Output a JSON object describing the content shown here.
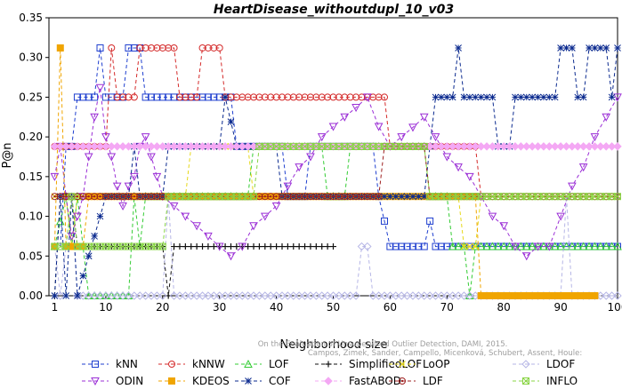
{
  "chart_data": {
    "type": "line",
    "title": "HeartDisease_withoutdupl_10_v03",
    "xlabel": "Neighborhood size",
    "ylabel": "P@n",
    "xlim": [
      0,
      100
    ],
    "ylim": [
      0,
      0.35
    ],
    "x_ticks": [
      1,
      10,
      20,
      30,
      40,
      50,
      60,
      70,
      80,
      90,
      100
    ],
    "y_ticks": [
      "0.00",
      "0.05",
      "0.10",
      "0.15",
      "0.20",
      "0.25",
      "0.30",
      "0.35"
    ],
    "grid": false,
    "legend_position": "bottom",
    "watermark": "Campos, Zimek, Sander, Campello, Micenková, Schubert, Assent, Houle: On the Evaluation of Unsupervised Outlier Detection, DAMI, 2015.",
    "series": [
      {
        "name": "kNN",
        "color": "#1f3fcf",
        "marker": "square",
        "points": [
          [
            1,
            0.062
          ],
          [
            2,
            0.062
          ],
          [
            3,
            0.188
          ],
          [
            4,
            0.188
          ],
          [
            5,
            0.25
          ],
          [
            8,
            0.25
          ],
          [
            9,
            0.312
          ],
          [
            10,
            0.25
          ],
          [
            13,
            0.25
          ],
          [
            14,
            0.312
          ],
          [
            16,
            0.312
          ],
          [
            17,
            0.25
          ],
          [
            32,
            0.25
          ],
          [
            33,
            0.188
          ],
          [
            35,
            0.188
          ],
          [
            36,
            0.188
          ],
          [
            41,
            0.188
          ],
          [
            42,
            0.125
          ],
          [
            45,
            0.125
          ],
          [
            46,
            0.188
          ],
          [
            57,
            0.188
          ],
          [
            58,
            0.125
          ],
          [
            59,
            0.094
          ],
          [
            60,
            0.062
          ],
          [
            66,
            0.062
          ],
          [
            67,
            0.094
          ],
          [
            68,
            0.062
          ],
          [
            100,
            0.062
          ]
        ]
      },
      {
        "name": "kNNW",
        "color": "#d42a2a",
        "marker": "circle",
        "points": [
          [
            1,
            0.188
          ],
          [
            10,
            0.188
          ],
          [
            11,
            0.312
          ],
          [
            12,
            0.25
          ],
          [
            15,
            0.25
          ],
          [
            16,
            0.312
          ],
          [
            22,
            0.312
          ],
          [
            23,
            0.25
          ],
          [
            26,
            0.25
          ],
          [
            27,
            0.312
          ],
          [
            30,
            0.312
          ],
          [
            31,
            0.25
          ],
          [
            59,
            0.25
          ],
          [
            60,
            0.188
          ],
          [
            75,
            0.188
          ],
          [
            76,
            0.125
          ],
          [
            100,
            0.125
          ]
        ]
      },
      {
        "name": "LOF",
        "color": "#33cc33",
        "marker": "triangle",
        "points": [
          [
            1,
            0.062
          ],
          [
            3,
            0.125
          ],
          [
            4,
            0.062
          ],
          [
            5,
            0.125
          ],
          [
            6,
            0.062
          ],
          [
            7,
            0.0
          ],
          [
            14,
            0.0
          ],
          [
            15,
            0.125
          ],
          [
            16,
            0.062
          ],
          [
            17,
            0.125
          ],
          [
            35,
            0.125
          ],
          [
            36,
            0.188
          ],
          [
            48,
            0.188
          ],
          [
            49,
            0.125
          ],
          [
            52,
            0.125
          ],
          [
            53,
            0.188
          ],
          [
            66,
            0.188
          ],
          [
            67,
            0.125
          ],
          [
            70,
            0.125
          ],
          [
            71,
            0.062
          ],
          [
            73,
            0.062
          ],
          [
            74,
            0.0
          ],
          [
            75,
            0.062
          ],
          [
            100,
            0.062
          ]
        ]
      },
      {
        "name": "SimplifiedLOF",
        "color": "#111111",
        "marker": "plus",
        "points": [
          [
            1,
            0.0
          ],
          [
            2,
            0.125
          ],
          [
            4,
            0.125
          ],
          [
            5,
            0.062
          ],
          [
            20,
            0.062
          ],
          [
            21,
            0.0
          ],
          [
            22,
            0.062
          ],
          [
            50,
            0.062
          ]
        ]
      },
      {
        "name": "LoOP",
        "color": "#e6d81a",
        "marker": "x",
        "points": [
          [
            1,
            0.125
          ],
          [
            3,
            0.125
          ],
          [
            4,
            0.062
          ],
          [
            5,
            0.125
          ],
          [
            24,
            0.125
          ],
          [
            25,
            0.188
          ],
          [
            35,
            0.188
          ],
          [
            36,
            0.125
          ],
          [
            72,
            0.125
          ],
          [
            73,
            0.062
          ],
          [
            75,
            0.062
          ],
          [
            76,
            0.125
          ],
          [
            100,
            0.125
          ]
        ]
      },
      {
        "name": "LDOF",
        "color": "#b6b6e6",
        "marker": "diamond",
        "points": [
          [
            1,
            0.062
          ],
          [
            2,
            0.0
          ],
          [
            4,
            0.125
          ],
          [
            5,
            0.0
          ],
          [
            20,
            0.0
          ],
          [
            21,
            0.125
          ],
          [
            22,
            0.0
          ],
          [
            54,
            0.0
          ],
          [
            55,
            0.062
          ],
          [
            56,
            0.062
          ],
          [
            57,
            0.0
          ],
          [
            90,
            0.0
          ],
          [
            91,
            0.125
          ],
          [
            92,
            0.0
          ],
          [
            100,
            0.0
          ]
        ]
      },
      {
        "name": "ODIN",
        "color": "#9b2fd6",
        "marker": "triangle-down",
        "points": [
          [
            1,
            0.15
          ],
          [
            2,
            0.188
          ],
          [
            3,
            0.125
          ],
          [
            4,
            0.075
          ],
          [
            5,
            0.1
          ],
          [
            6,
            0.125
          ],
          [
            7,
            0.175
          ],
          [
            8,
            0.225
          ],
          [
            9,
            0.262
          ],
          [
            10,
            0.2
          ],
          [
            11,
            0.175
          ],
          [
            12,
            0.138
          ],
          [
            13,
            0.113
          ],
          [
            14,
            0.138
          ],
          [
            15,
            0.15
          ],
          [
            16,
            0.188
          ],
          [
            17,
            0.2
          ],
          [
            18,
            0.175
          ],
          [
            19,
            0.15
          ],
          [
            20,
            0.125
          ],
          [
            22,
            0.113
          ],
          [
            24,
            0.1
          ],
          [
            26,
            0.088
          ],
          [
            28,
            0.075
          ],
          [
            30,
            0.062
          ],
          [
            32,
            0.05
          ],
          [
            34,
            0.062
          ],
          [
            36,
            0.088
          ],
          [
            38,
            0.1
          ],
          [
            40,
            0.113
          ],
          [
            42,
            0.138
          ],
          [
            44,
            0.162
          ],
          [
            46,
            0.175
          ],
          [
            48,
            0.2
          ],
          [
            50,
            0.213
          ],
          [
            52,
            0.225
          ],
          [
            54,
            0.237
          ],
          [
            56,
            0.25
          ],
          [
            58,
            0.213
          ],
          [
            60,
            0.188
          ],
          [
            62,
            0.2
          ],
          [
            64,
            0.212
          ],
          [
            66,
            0.225
          ],
          [
            68,
            0.2
          ],
          [
            70,
            0.175
          ],
          [
            72,
            0.162
          ],
          [
            74,
            0.15
          ],
          [
            76,
            0.125
          ],
          [
            78,
            0.1
          ],
          [
            80,
            0.088
          ],
          [
            82,
            0.062
          ],
          [
            84,
            0.05
          ],
          [
            86,
            0.062
          ],
          [
            88,
            0.062
          ],
          [
            90,
            0.1
          ],
          [
            92,
            0.138
          ],
          [
            94,
            0.162
          ],
          [
            96,
            0.2
          ],
          [
            98,
            0.225
          ],
          [
            100,
            0.25
          ]
        ]
      },
      {
        "name": "KDEOS",
        "color": "#f0a500",
        "marker": "square-filled",
        "points": [
          [
            1,
            0.062
          ],
          [
            2,
            0.312
          ],
          [
            3,
            0.062
          ],
          [
            6,
            0.062
          ],
          [
            7,
            0.125
          ],
          [
            75,
            0.125
          ],
          [
            76,
            0.0
          ],
          [
            96,
            0.0
          ]
        ]
      },
      {
        "name": "COF",
        "color": "#0b2a8f",
        "marker": "asterisk",
        "points": [
          [
            1,
            0.0
          ],
          [
            2,
            0.125
          ],
          [
            3,
            0.0
          ],
          [
            4,
            0.125
          ],
          [
            5,
            0.0
          ],
          [
            10,
            0.125
          ],
          [
            14,
            0.125
          ],
          [
            15,
            0.188
          ],
          [
            16,
            0.125
          ],
          [
            20,
            0.125
          ],
          [
            21,
            0.188
          ],
          [
            30,
            0.188
          ],
          [
            31,
            0.25
          ],
          [
            33,
            0.188
          ],
          [
            40,
            0.188
          ],
          [
            41,
            0.125
          ],
          [
            60,
            0.125
          ],
          [
            66,
            0.125
          ],
          [
            67,
            0.188
          ],
          [
            68,
            0.25
          ],
          [
            71,
            0.25
          ],
          [
            72,
            0.312
          ],
          [
            73,
            0.25
          ],
          [
            78,
            0.25
          ],
          [
            79,
            0.188
          ],
          [
            81,
            0.188
          ],
          [
            82,
            0.25
          ],
          [
            89,
            0.25
          ],
          [
            90,
            0.312
          ],
          [
            92,
            0.312
          ],
          [
            93,
            0.25
          ],
          [
            94,
            0.25
          ],
          [
            95,
            0.312
          ],
          [
            98,
            0.312
          ],
          [
            99,
            0.25
          ],
          [
            100,
            0.312
          ]
        ]
      },
      {
        "name": "FastABOD",
        "color": "#f4a8f4",
        "marker": "diamond-filled",
        "points": [
          [
            1,
            0.188
          ],
          [
            100,
            0.188
          ]
        ]
      },
      {
        "name": "LDF",
        "color": "#9e1f1f",
        "marker": "circle-dot",
        "points": [
          [
            1,
            0.125
          ],
          [
            58,
            0.125
          ],
          [
            59,
            0.188
          ],
          [
            66,
            0.188
          ],
          [
            67,
            0.125
          ],
          [
            100,
            0.125
          ]
        ]
      },
      {
        "name": "INFLO",
        "color": "#88d444",
        "marker": "square-x",
        "points": [
          [
            1,
            0.062
          ],
          [
            3,
            0.062
          ],
          [
            4,
            0.125
          ],
          [
            5,
            0.062
          ],
          [
            20,
            0.062
          ],
          [
            21,
            0.125
          ],
          [
            36,
            0.125
          ],
          [
            37,
            0.188
          ],
          [
            66,
            0.188
          ],
          [
            67,
            0.125
          ],
          [
            100,
            0.125
          ]
        ]
      }
    ]
  }
}
